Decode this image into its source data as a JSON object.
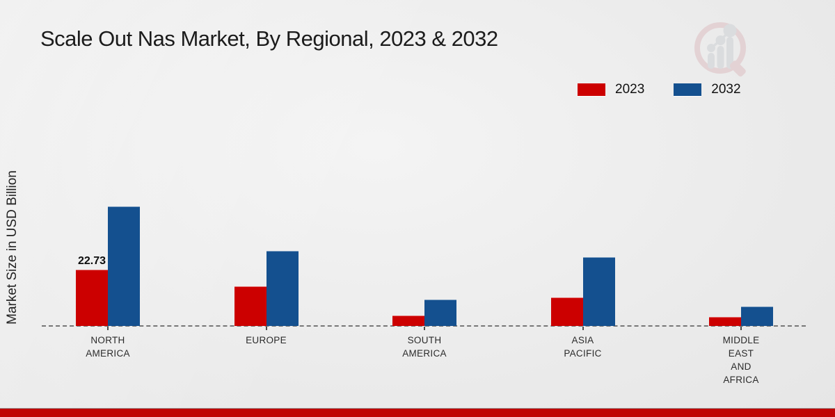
{
  "title": "Scale Out Nas Market, By Regional, 2023 & 2032",
  "y_axis_label": "Market Size in USD Billion",
  "legend": {
    "items": [
      {
        "label": "2023",
        "color": "#cc0000"
      },
      {
        "label": "2032",
        "color": "#14508f"
      }
    ]
  },
  "watermark": "market-research-logo",
  "colors": {
    "series_2023": "#cc0000",
    "series_2032": "#14508f",
    "footer_band": "#c00404",
    "baseline": "#767676",
    "background": "#ececec"
  },
  "chart_data": {
    "type": "bar",
    "title": "Scale Out Nas Market, By Regional, 2023 & 2032",
    "xlabel": "",
    "ylabel": "Market Size in USD Billion",
    "categories": [
      "North America",
      "Europe",
      "South America",
      "Asia Pacific",
      "Middle East and Africa"
    ],
    "category_display": [
      [
        "NORTH",
        "AMERICA"
      ],
      [
        "EUROPE"
      ],
      [
        "SOUTH",
        "AMERICA"
      ],
      [
        "ASIA",
        "PACIFIC"
      ],
      [
        "MIDDLE",
        "EAST",
        "AND",
        "AFRICA"
      ]
    ],
    "series": [
      {
        "name": "2023",
        "color": "#cc0000",
        "values": [
          22.73,
          16.0,
          4.2,
          11.5,
          3.6
        ]
      },
      {
        "name": "2032",
        "color": "#14508f",
        "values": [
          48.2,
          30.2,
          10.6,
          27.7,
          7.8
        ]
      }
    ],
    "data_labels": [
      {
        "series_index": 0,
        "category_index": 0,
        "text": "22.73"
      }
    ],
    "ylim": [
      0,
      55
    ],
    "grid": false,
    "axis_ticks_visible": false,
    "legend_position": "top-right",
    "baseline_style": "dashed"
  }
}
